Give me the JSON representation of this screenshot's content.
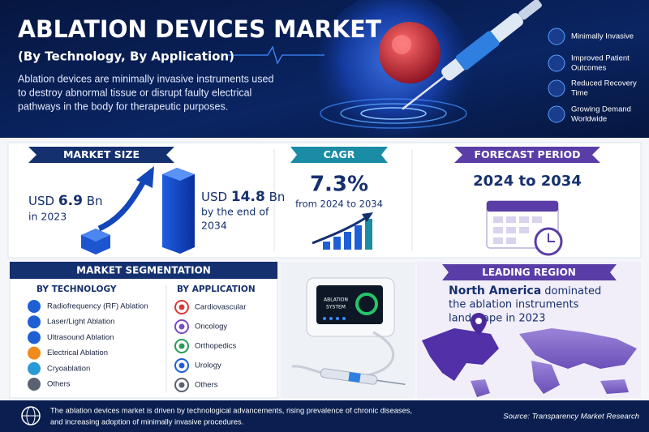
{
  "header": {
    "title": "ABLATION DEVICES MARKET",
    "subtitle": "(By Technology, By Application)",
    "description": [
      "Ablation devices are minimally invasive instruments used",
      "to destroy abnormal tissue or disrupt faulty electrical",
      "pathways in the body for therapeutic purposes."
    ]
  },
  "highlights": [
    [
      "Minimally Invasive"
    ],
    [
      "Improved Patient",
      "Outcomes"
    ],
    [
      "Reduced Recovery",
      "Time"
    ],
    [
      "Growing Demand",
      "Worldwide"
    ]
  ],
  "market_size": {
    "heading": "MARKET SIZE",
    "start": {
      "currency": "USD",
      "value": 6.9,
      "unit": "Bn",
      "period": "in 2023"
    },
    "end": {
      "currency": "USD",
      "value": 14.8,
      "unit": "Bn",
      "period": [
        "by the end of",
        "2034"
      ]
    }
  },
  "cagr": {
    "heading": "CAGR",
    "value": "7.3%",
    "period": "from 2024 to 2034"
  },
  "forecast": {
    "heading": "FORECAST PERIOD",
    "range": "2024 to 2034"
  },
  "segmentation": {
    "heading": "MARKET SEGMENTATION",
    "technology": {
      "title": "BY TECHNOLOGY",
      "items": [
        "Radiofrequency (RF) Ablation",
        "Laser/Light Ablation",
        "Ultrasound Ablation",
        "Electrical Ablation",
        "Cryoablation",
        "Others"
      ]
    },
    "application": {
      "title": "BY APPLICATION",
      "items": [
        "Cardiovascular",
        "Oncology",
        "Orthopedics",
        "Urology",
        "Others"
      ]
    }
  },
  "device": {
    "screen_text": [
      "ABLATION",
      "SYSTEM"
    ]
  },
  "leading_region": {
    "heading": "LEADING REGION",
    "region": "North America",
    "text": [
      " dominated",
      "the ablation instruments",
      "landscape in 2023"
    ]
  },
  "footer": {
    "text": [
      "The ablation devices market is driven by technological advancements, rising prevalence of chronic diseases,",
      "and increasing adoption of minimally invasive procedures."
    ],
    "source": "Source: Transparency Market Research"
  }
}
